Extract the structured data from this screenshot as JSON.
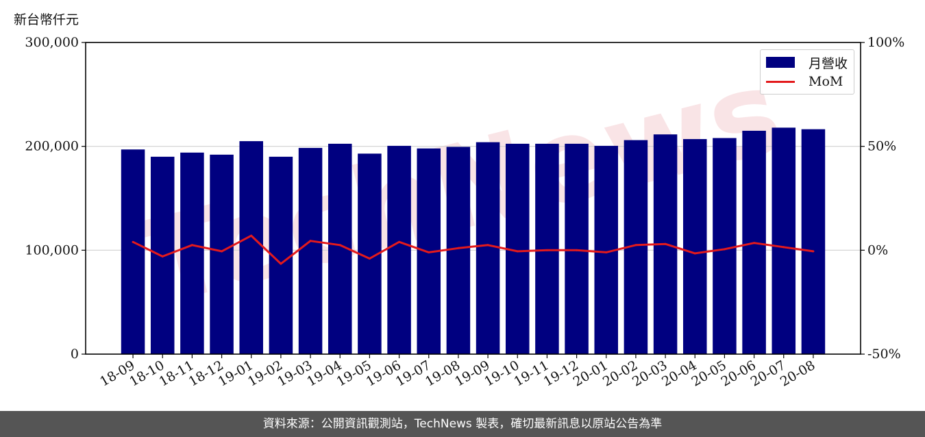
{
  "unit_label": "新台幣仟元",
  "footer_text": "資料來源：公開資訊觀測站，TechNews 製表，確切最新訊息以原站公告為準",
  "watermark_text": "TechNews",
  "colors": {
    "bar": "#000080",
    "line": "#e31a1c",
    "watermark": "#f2c4c8",
    "footer_bg": "#555555"
  },
  "chart_data": {
    "type": "bar",
    "categories": [
      "18-09",
      "18-10",
      "18-11",
      "18-12",
      "19-01",
      "19-02",
      "19-03",
      "19-04",
      "19-05",
      "19-06",
      "19-07",
      "19-08",
      "19-09",
      "19-10",
      "19-11",
      "19-12",
      "20-01",
      "20-02",
      "20-03",
      "20-04",
      "20-05",
      "20-06",
      "20-07",
      "20-08"
    ],
    "series": [
      {
        "name": "月營收",
        "type": "bar",
        "axis": "left",
        "values": [
          197000,
          190000,
          194000,
          192000,
          205000,
          190000,
          198500,
          202500,
          193000,
          200500,
          198000,
          199500,
          204000,
          202500,
          202500,
          202500,
          200500,
          206000,
          211500,
          207000,
          208000,
          215000,
          218000,
          216500
        ]
      },
      {
        "name": "MoM",
        "type": "line",
        "axis": "right",
        "values": [
          4.0,
          -3.0,
          2.5,
          -0.5,
          7.0,
          -6.5,
          4.5,
          2.5,
          -4.0,
          4.0,
          -1.0,
          1.0,
          2.5,
          -0.5,
          0.0,
          0.0,
          -1.0,
          2.5,
          3.0,
          -1.5,
          0.5,
          3.5,
          1.5,
          -0.5
        ]
      }
    ],
    "y_left": {
      "lim": [
        0,
        300000
      ],
      "ticks": [
        0,
        100000,
        200000,
        300000
      ],
      "tick_labels": [
        "0",
        "100,000",
        "200,000",
        "300,000"
      ]
    },
    "y_right": {
      "lim": [
        -50,
        100
      ],
      "ticks": [
        -50,
        0,
        50,
        100
      ],
      "tick_labels": [
        "-50%",
        "0%",
        "50%",
        "100%"
      ]
    },
    "grid": "horizontal",
    "legend_position": "top-right"
  }
}
